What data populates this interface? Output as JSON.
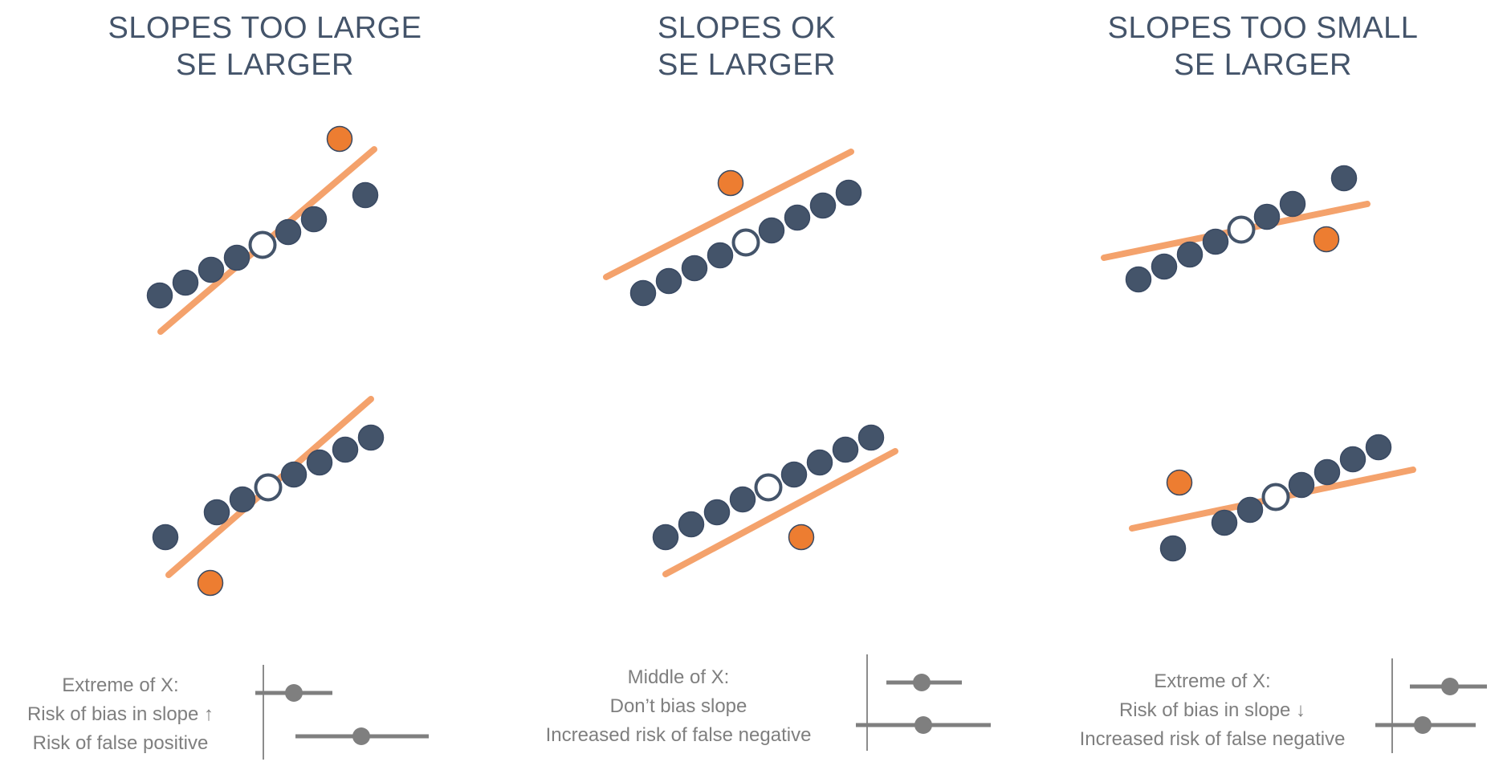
{
  "columns": [
    {
      "title_line1": "SLOPES TOO LARGE",
      "title_line2": "SE LARGER",
      "caption": [
        "Extreme of X:",
        "Risk of bias in slope ↑",
        "Risk of false positive"
      ]
    },
    {
      "title_line1": "SLOPES OK",
      "title_line2": "SE LARGER",
      "caption": [
        "Middle of X:",
        "Don’t bias slope",
        "Increased risk of false negative"
      ]
    },
    {
      "title_line1": "SLOPES TOO SMALL",
      "title_line2": "SE LARGER",
      "caption": [
        "Extreme of X:",
        "Risk of bias in slope ↓",
        "Increased risk of false negative"
      ]
    }
  ],
  "colors": {
    "title": "#44546a",
    "point": "#44546a",
    "outlier": "#ed7d31",
    "line": "#f4a26c",
    "caption": "#7f7f7f",
    "interval": "#7f7f7f"
  }
}
